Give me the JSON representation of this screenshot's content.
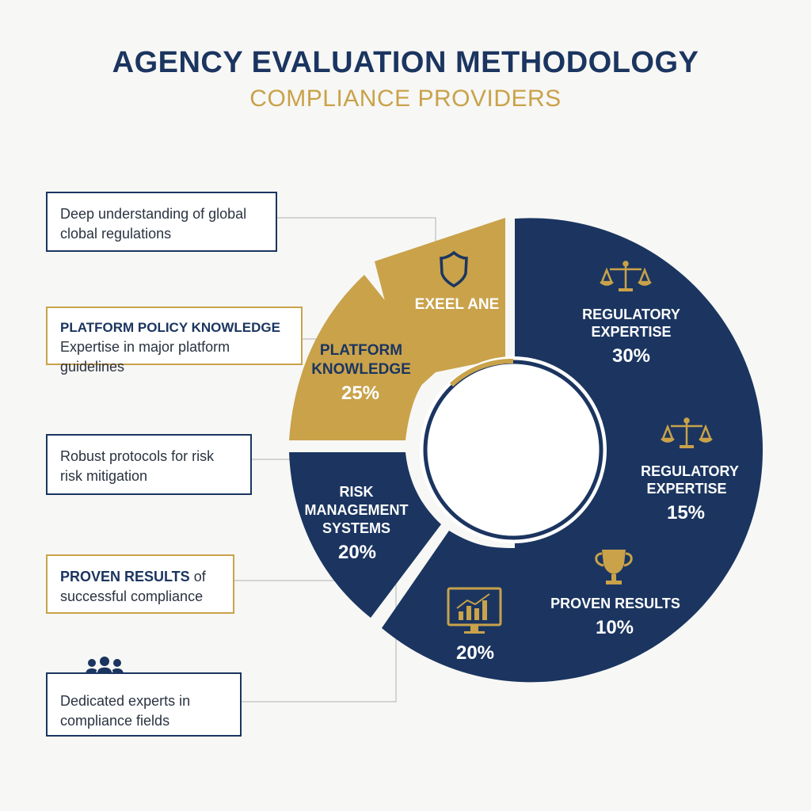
{
  "header": {
    "title": "AGENCY EVALUATION METHODOLOGY",
    "subtitle": "COMPLIANCE PROVIDERS"
  },
  "callouts": {
    "global": {
      "text": "Deep understanding of global clobal regulations"
    },
    "platform": {
      "heading": "PLATFORM POLICY KNOWLEDGE",
      "text": "Expertise in major platform guidelines"
    },
    "risk": {
      "text": "Robust protocols for risk risk mitigation"
    },
    "results": {
      "heading": "PROVEN RESULTS",
      "text": " of successful compliance"
    },
    "experts": {
      "text": "Dedicated experts in compliance fields"
    }
  },
  "chart_data": {
    "type": "pie",
    "segments": [
      {
        "name": "EXEEL ANE",
        "value": null,
        "color": "#c9a24a",
        "icon": "shield-icon"
      },
      {
        "name": "PLATFORM KNOWLEDGE",
        "value": 25,
        "label": "25%",
        "color": "#c9a24a"
      },
      {
        "name": "RISK MANAGEMENT SYSTEMS",
        "value": 20,
        "label": "20%",
        "color": "#1b3560"
      },
      {
        "name": "",
        "value": 20,
        "label": "20%",
        "color": "#1b3560",
        "icon": "monitor-chart-icon"
      },
      {
        "name": "PROVEN RESULTS",
        "value": 10,
        "label": "10%",
        "color": "#1b3560",
        "icon": "trophy-icon"
      },
      {
        "name": "REGULATORY EXPERTISE",
        "value": 15,
        "label": "15%",
        "color": "#1b3560",
        "icon": "scales-icon"
      },
      {
        "name": "REGULATORY EXPERTISE",
        "value": 30,
        "label": "30%",
        "color": "#1b3560",
        "icon": "scales-icon"
      }
    ]
  },
  "colors": {
    "navy": "#1b3560",
    "gold": "#c9a24a",
    "background": "#f7f7f5"
  }
}
